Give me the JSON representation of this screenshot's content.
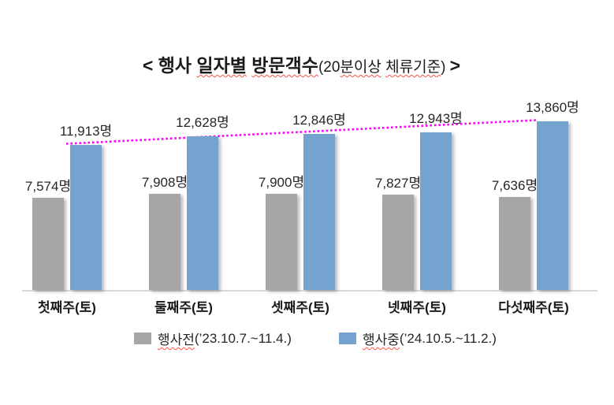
{
  "page": {
    "background": "#ffffff"
  },
  "title": {
    "full": "< 행사 일자별 방문객수(20분이상 체류기준) >",
    "segments": [
      {
        "text": "< 행사 ",
        "bold": true,
        "squiggle": false
      },
      {
        "text": "일자별",
        "bold": true,
        "squiggle": true
      },
      {
        "text": " ",
        "bold": true,
        "squiggle": false
      },
      {
        "text": "방문객수",
        "bold": true,
        "squiggle": true
      },
      {
        "text": "(20",
        "bold": false,
        "squiggle": false
      },
      {
        "text": "분이상",
        "bold": false,
        "squiggle": true
      },
      {
        "text": " ",
        "bold": false,
        "squiggle": false
      },
      {
        "text": "체류기준",
        "bold": false,
        "squiggle": true
      },
      {
        "text": ") ",
        "bold": false,
        "squiggle": false
      },
      {
        "text": ">",
        "bold": true,
        "squiggle": false
      }
    ]
  },
  "chart_data": {
    "type": "bar",
    "title": "행사 일자별 방문객수",
    "subtitle": "(20분이상 체류기준)",
    "unit_suffix": "명",
    "categories": [
      "첫째주(토)",
      "둘째주(토)",
      "셋째주(토)",
      "넷째주(토)",
      "다섯째주(토)"
    ],
    "series": [
      {
        "name": "행사전(’23.10.7.~11.4.)",
        "legend_word": "행사전",
        "legend_period": "(’23.10.7.~11.4.)",
        "color": "#a6a6a6",
        "values": [
          7574,
          7908,
          7900,
          7827,
          7636
        ],
        "labels": [
          "7,574명",
          "7,908명",
          "7,900명",
          "7,827명",
          "7,636명"
        ]
      },
      {
        "name": "행사중(’24.10.5.~11.2.)",
        "legend_word": "행사중",
        "legend_period": "(’24.10.5.~11.2.)",
        "color": "#74a3cf",
        "values": [
          11913,
          12628,
          12846,
          12943,
          13860
        ],
        "labels": [
          "11,913명",
          "12,628명",
          "12,846명",
          "12,943명",
          "13,860명"
        ]
      }
    ],
    "trendline": {
      "on_series": "행사중(’24.10.5.~11.2.)",
      "shape": "linear-first-to-last",
      "style": "dotted",
      "color": "#ff00ff",
      "from": 11913,
      "to": 13860
    },
    "ylim": [
      0,
      14500
    ],
    "grid": false,
    "y_axis_visible": false,
    "x_axis_line_color": "#d9d9d9",
    "data_labels": true,
    "legend_position": "bottom"
  },
  "colors": {
    "axis_line": "#d9d9d9",
    "label_text": "#262626",
    "squiggle": "#ff5148"
  }
}
